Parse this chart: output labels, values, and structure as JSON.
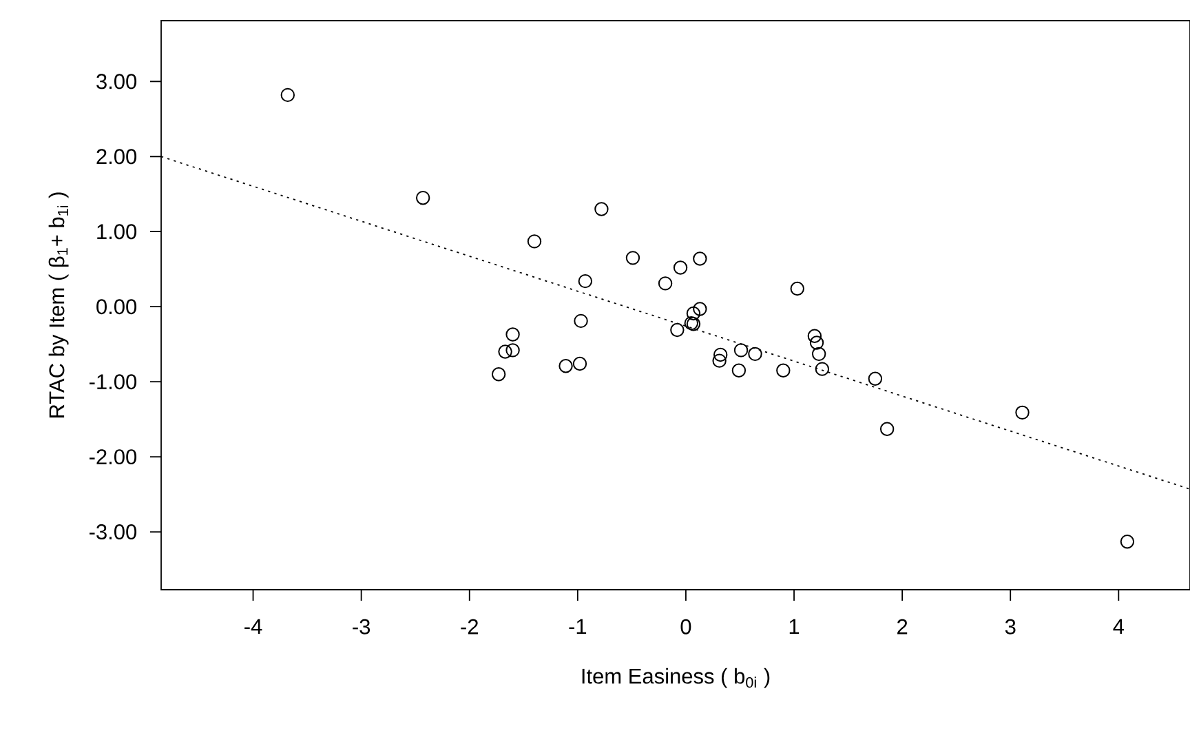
{
  "chart_data": {
    "type": "scatter",
    "xlabel": "Item Easiness ( b$_{0i}$ )",
    "ylabel": "RTAC by Item ( β$_{1}$+ b$_{1i}$ )",
    "xlim": [
      -4.85,
      4.66
    ],
    "ylim": [
      -3.77,
      3.81
    ],
    "xticks": [
      -4,
      -3,
      -2,
      -1,
      0,
      1,
      2,
      3,
      4
    ],
    "yticks": [
      {
        "value": -3,
        "label": "-3.00"
      },
      {
        "value": -2,
        "label": "-2.00"
      },
      {
        "value": -1,
        "label": "-1.00"
      },
      {
        "value": 0,
        "label": "0.00"
      },
      {
        "value": 1,
        "label": "1.00"
      },
      {
        "value": 2,
        "label": "2.00"
      },
      {
        "value": 3,
        "label": "3.00"
      }
    ],
    "grid": false,
    "series": [
      {
        "color": "#000000",
        "marker": "circle",
        "x": [
          -3.68,
          -2.43,
          -0.78,
          -1.4,
          -0.49,
          -0.05,
          0.13,
          -0.93,
          -0.19,
          1.03,
          0.13,
          0.07,
          0.05,
          0.07,
          -0.08,
          -0.97,
          -1.6,
          -1.67,
          -1.6,
          -1.73,
          -1.11,
          -0.98,
          0.32,
          0.31,
          0.51,
          0.64,
          0.49,
          0.9,
          1.19,
          1.21,
          1.23,
          1.26,
          1.75,
          1.86,
          3.11,
          4.08
        ],
        "values": [
          2.82,
          1.45,
          1.3,
          0.87,
          0.65,
          0.52,
          0.64,
          0.34,
          0.31,
          0.24,
          -0.03,
          -0.09,
          -0.22,
          -0.23,
          -0.31,
          -0.19,
          -0.37,
          -0.6,
          -0.58,
          -0.9,
          -0.79,
          -0.76,
          -0.64,
          -0.72,
          -0.58,
          -0.63,
          -0.85,
          -0.85,
          -0.39,
          -0.48,
          -0.63,
          -0.83,
          -0.96,
          -1.63,
          -1.41,
          -3.13
        ]
      },
      {
        "type": "line",
        "color": "#000000",
        "marker": "none",
        "line_style": "dotted",
        "x": [
          -4.85,
          4.66
        ],
        "values": [
          2.0,
          -2.43
        ]
      }
    ]
  }
}
